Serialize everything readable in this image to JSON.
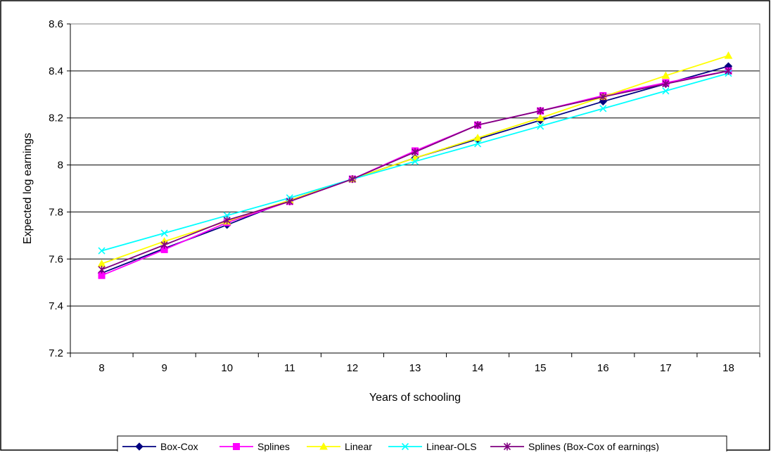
{
  "chart_data": {
    "type": "line",
    "xlabel": "Years of schooling",
    "ylabel": "Expected log earnings",
    "categories": [
      "8",
      "9",
      "10",
      "11",
      "12",
      "13",
      "14",
      "15",
      "16",
      "17",
      "18"
    ],
    "ylim": [
      7.2,
      8.6
    ],
    "yticks": [
      "7.2",
      "7.4",
      "7.6",
      "7.8",
      "8",
      "8.2",
      "8.4",
      "8.6"
    ],
    "grid": "horizontal",
    "legend_position": "bottom",
    "series": [
      {
        "name": "Box-Cox",
        "color": "#000080",
        "marker": "diamond",
        "values": [
          7.54,
          7.645,
          7.745,
          7.85,
          7.94,
          8.03,
          8.11,
          8.19,
          8.27,
          8.345,
          8.42
        ]
      },
      {
        "name": "Splines",
        "color": "#FF00FF",
        "marker": "square",
        "values": [
          7.53,
          7.64,
          7.755,
          7.845,
          7.94,
          8.06,
          8.17,
          8.23,
          8.295,
          8.35,
          8.4
        ]
      },
      {
        "name": "Linear",
        "color": "#FFFF00",
        "marker": "triangle",
        "values": [
          7.58,
          7.675,
          7.76,
          7.85,
          7.94,
          8.03,
          8.115,
          8.2,
          8.29,
          8.38,
          8.465
        ]
      },
      {
        "name": "Linear-OLS",
        "color": "#00FFFF",
        "marker": "x",
        "values": [
          7.635,
          7.71,
          7.785,
          7.86,
          7.94,
          8.015,
          8.09,
          8.165,
          8.24,
          8.315,
          8.39
        ]
      },
      {
        "name": "Splines (Box-Cox of earnings)",
        "color": "#800080",
        "marker": "star",
        "values": [
          7.555,
          7.66,
          7.765,
          7.845,
          7.94,
          8.055,
          8.17,
          8.23,
          8.29,
          8.345,
          8.4
        ]
      }
    ]
  }
}
